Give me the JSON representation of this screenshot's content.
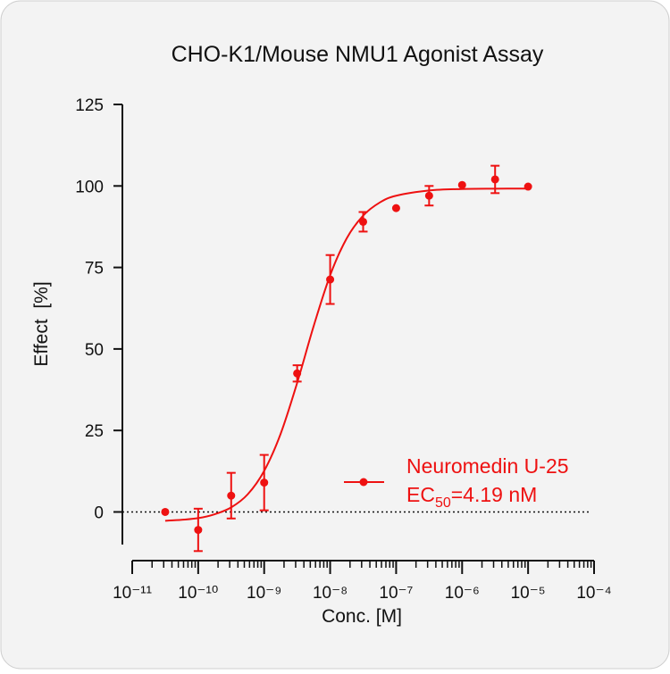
{
  "chart_data": {
    "type": "dose_response",
    "title": "CHO-K1/Mouse NMU1 Agonist Assay",
    "x_label": "Conc. [M]",
    "y_label": "Effect  [%]",
    "xscale": "log",
    "xlim": [
      1e-11,
      0.0001
    ],
    "xticks": [
      {
        "value": 1e-11,
        "label": "10⁻¹¹"
      },
      {
        "value": 1e-10,
        "label": "10⁻¹⁰"
      },
      {
        "value": 1e-09,
        "label": "10⁻⁹"
      },
      {
        "value": 1e-08,
        "label": "10⁻⁸"
      },
      {
        "value": 1e-07,
        "label": "10⁻⁷"
      },
      {
        "value": 1e-06,
        "label": "10⁻⁶"
      },
      {
        "value": 1e-05,
        "label": "10⁻⁵"
      },
      {
        "value": 0.0001,
        "label": "10⁻⁴"
      }
    ],
    "ylim": [
      -10,
      125
    ],
    "yticks": [
      0,
      25,
      50,
      75,
      100,
      125
    ],
    "zero_line": true,
    "minor_ticks": true,
    "series": [
      {
        "name": "Neuromedin U-25",
        "color": "#ee1111",
        "x": [
          3.162e-11,
          1e-10,
          3.162e-10,
          1e-09,
          3.162e-09,
          1e-08,
          3.162e-08,
          1e-07,
          3.162e-07,
          1e-06,
          3.162e-06,
          1e-05
        ],
        "values": [
          0,
          -5.5,
          5,
          9,
          42.5,
          71.3,
          89,
          93.2,
          97,
          100.3,
          102,
          99.8
        ],
        "errors": [
          null,
          6.5,
          7,
          8.5,
          2.5,
          7.5,
          3,
          null,
          3,
          null,
          4.2,
          null
        ],
        "fit": {
          "x": [
            3.162e-11,
            5.623e-11,
            1e-10,
            1.778e-10,
            3.162e-10,
            5.623e-10,
            1e-09,
            1.778e-09,
            3.162e-09,
            5.623e-09,
            1e-08,
            1.778e-08,
            3.162e-08,
            5.623e-08,
            1e-07,
            3.162e-07,
            1e-06,
            3.162e-06,
            1e-05
          ],
          "values": [
            -2.7,
            -2.4,
            -1.9,
            -0.7,
            1.4,
            5.4,
            12.6,
            24.0,
            39.6,
            57.0,
            72.6,
            83.9,
            90.9,
            94.9,
            97.0,
            98.6,
            99.06,
            99.16,
            99.2
          ]
        },
        "ec50_prefix": "EC",
        "ec50_subscript": "50",
        "ec50_text": "=4.19 nM"
      }
    ]
  }
}
